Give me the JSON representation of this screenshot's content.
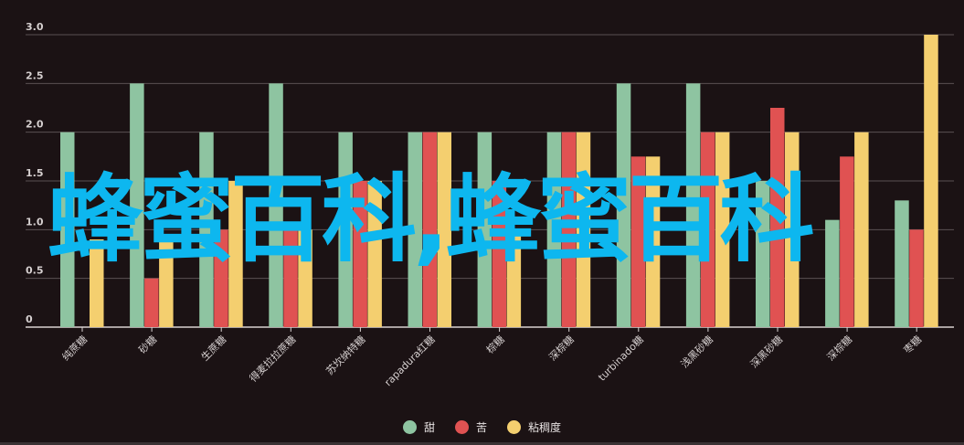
{
  "chart_data": {
    "type": "bar",
    "categories": [
      "纯蔗糖",
      "砂糖",
      "生蔗糖",
      "得麦拉拉蔗糖",
      "苏坎纳特糖",
      "rapadura红糖",
      "棕糖",
      "深棕糖",
      "turbinado糖",
      "浅黑砂糖",
      "深黑砂糖",
      "深棕糖",
      "枣糖"
    ],
    "series": [
      {
        "name": "甜",
        "color": "#8ec4a1",
        "values": [
          2,
          2.5,
          2,
          2.5,
          2,
          2,
          2,
          2,
          2.5,
          2.5,
          1.5,
          1.1,
          1.3
        ]
      },
      {
        "name": "苦",
        "color": "#e05252",
        "values": [
          0,
          0.5,
          1,
          1,
          1.5,
          2,
          1.5,
          2,
          1.75,
          2,
          2.25,
          1.75,
          1
        ]
      },
      {
        "name": "粘稠度",
        "color": "#f4cf6f",
        "values": [
          0.9,
          0.9,
          1.5,
          1,
          1.5,
          2,
          1,
          2,
          1.75,
          2,
          2,
          2,
          3
        ]
      }
    ],
    "yticks": [
      "0",
      "0.5",
      "1.0",
      "1.5",
      "2.0",
      "2.5",
      "3.0"
    ],
    "ylim": [
      0,
      3
    ],
    "grid": true,
    "legend_position": "bottom-center"
  },
  "watermark": "蜂蜜百科,蜂蜜百科"
}
